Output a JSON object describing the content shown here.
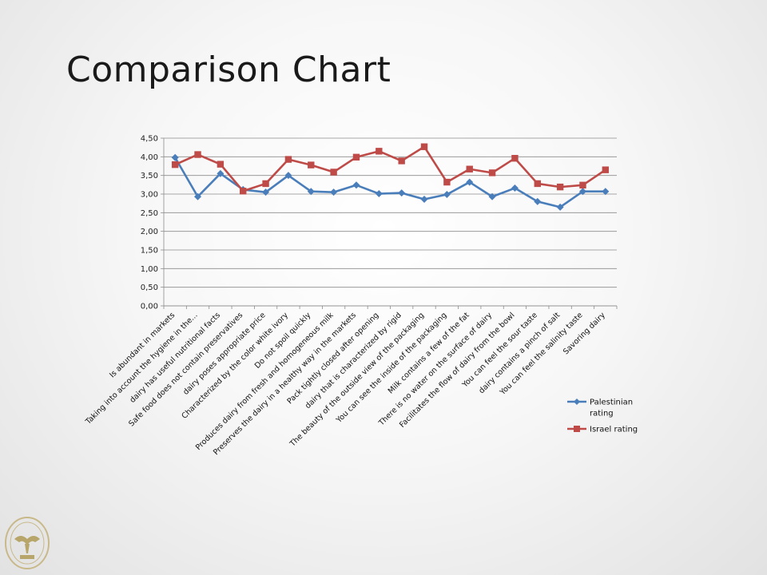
{
  "slide": {
    "title": "Comparison Chart"
  },
  "chart_data": {
    "type": "line",
    "title": "",
    "xlabel": "",
    "ylabel": "",
    "ylim": [
      0,
      4.5
    ],
    "yticks": [
      "0,00",
      "0,50",
      "1,00",
      "1,50",
      "2,00",
      "2,50",
      "3,00",
      "3,50",
      "4,00",
      "4,50"
    ],
    "grid": true,
    "legend": "right",
    "categories": [
      "Is abundant in markets",
      "Taking into account the hygiene in the...",
      "dairy has useful nutritional facts",
      "Safe food does not contain preservatives",
      "dairy poses appropriate price",
      "Characterized by the color white ivory",
      "Do not spoil quickly",
      "Produces dairy from fresh and homogeneous milk",
      "Preserves the dairy in a healthy way in the markets",
      "Pack tightly closed after opening",
      "dairy that is characterized by rigid",
      "The beauty of the outside view of the packaging",
      "You can see the inside of the packaging",
      "Milk contains a few of the fat",
      "There is no water on the surface of dairy",
      "Facilitates the flow of dairy from the bowl",
      "You can feel the sour taste",
      "dairy contains a pinch of salt",
      "You can feel the salinity taste",
      "Savoring dairy"
    ],
    "series": [
      {
        "name": "Palestinian rating",
        "legend_lines": [
          "Palestinian",
          "rating"
        ],
        "color": "#4a7ebb",
        "marker": "diamond",
        "values": [
          3.98,
          2.93,
          3.55,
          3.12,
          3.05,
          3.5,
          3.07,
          3.05,
          3.24,
          3.01,
          3.03,
          2.86,
          2.99,
          3.32,
          2.93,
          3.16,
          2.8,
          2.65,
          3.07,
          3.07
        ]
      },
      {
        "name": "Israel rating",
        "legend_lines": [
          "Israel rating"
        ],
        "color": "#be4b48",
        "marker": "square",
        "values": [
          3.79,
          4.06,
          3.8,
          3.08,
          3.28,
          3.93,
          3.78,
          3.59,
          3.99,
          4.15,
          3.89,
          4.27,
          3.32,
          3.67,
          3.57,
          3.96,
          3.28,
          3.19,
          3.24,
          3.65
        ]
      }
    ]
  },
  "logo": {
    "icon": "university-seal-icon"
  }
}
